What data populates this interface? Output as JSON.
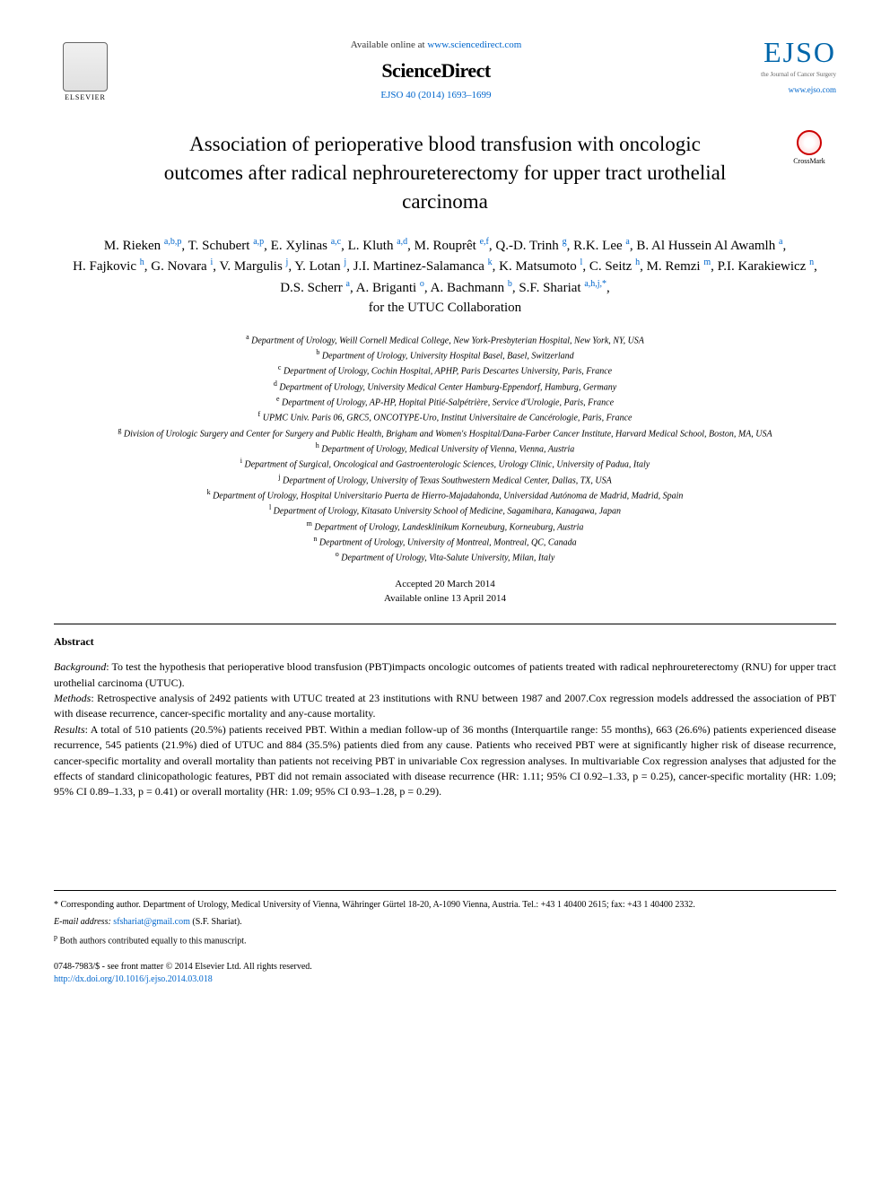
{
  "header": {
    "available_text": "Available online at ",
    "sd_url": "www.sciencedirect.com",
    "sciencedirect": "ScienceDirect",
    "journal_ref": "EJSO 40 (2014) 1693–1699",
    "elsevier_label": "ELSEVIER",
    "ejso_label": "EJSO",
    "ejso_subtitle": "the Journal of Cancer Surgery",
    "ejso_url": "www.ejso.com"
  },
  "crossmark": {
    "label": "CrossMark"
  },
  "title": "Association of perioperative blood transfusion with oncologic outcomes after radical nephroureterectomy for upper tract urothelial carcinoma",
  "authors": [
    {
      "name": "M. Rieken",
      "sup": "a,b,p"
    },
    {
      "name": "T. Schubert",
      "sup": "a,p"
    },
    {
      "name": "E. Xylinas",
      "sup": "a,c"
    },
    {
      "name": "L. Kluth",
      "sup": "a,d"
    },
    {
      "name": "M. Rouprêt",
      "sup": "e,f"
    },
    {
      "name": "Q.-D. Trinh",
      "sup": "g"
    },
    {
      "name": "R.K. Lee",
      "sup": "a"
    },
    {
      "name": "B. Al Hussein Al Awamlh",
      "sup": "a"
    },
    {
      "name": "H. Fajkovic",
      "sup": "h"
    },
    {
      "name": "G. Novara",
      "sup": "i"
    },
    {
      "name": "V. Margulis",
      "sup": "j"
    },
    {
      "name": "Y. Lotan",
      "sup": "j"
    },
    {
      "name": "J.I. Martinez-Salamanca",
      "sup": "k"
    },
    {
      "name": "K. Matsumoto",
      "sup": "l"
    },
    {
      "name": "C. Seitz",
      "sup": "h"
    },
    {
      "name": "M. Remzi",
      "sup": "m"
    },
    {
      "name": "P.I. Karakiewicz",
      "sup": "n"
    },
    {
      "name": "D.S. Scherr",
      "sup": "a"
    },
    {
      "name": "A. Briganti",
      "sup": "o"
    },
    {
      "name": "A. Bachmann",
      "sup": "b"
    },
    {
      "name": "S.F. Shariat",
      "sup": "a,h,j,*"
    }
  ],
  "collaboration": "for the UTUC Collaboration",
  "affiliations": [
    {
      "sup": "a",
      "text": "Department of Urology, Weill Cornell Medical College, New York-Presbyterian Hospital, New York, NY, USA"
    },
    {
      "sup": "b",
      "text": "Department of Urology, University Hospital Basel, Basel, Switzerland"
    },
    {
      "sup": "c",
      "text": "Department of Urology, Cochin Hospital, APHP, Paris Descartes University, Paris, France"
    },
    {
      "sup": "d",
      "text": "Department of Urology, University Medical Center Hamburg-Eppendorf, Hamburg, Germany"
    },
    {
      "sup": "e",
      "text": "Department of Urology, AP-HP, Hopital Pitié-Salpétrière, Service d'Urologie, Paris, France"
    },
    {
      "sup": "f",
      "text": "UPMC Univ. Paris 06, GRC5, ONCOTYPE-Uro, Institut Universitaire de Cancérologie, Paris, France"
    },
    {
      "sup": "g",
      "text": "Division of Urologic Surgery and Center for Surgery and Public Health, Brigham and Women's Hospital/Dana-Farber Cancer Institute, Harvard Medical School, Boston, MA, USA"
    },
    {
      "sup": "h",
      "text": "Department of Urology, Medical University of Vienna, Vienna, Austria"
    },
    {
      "sup": "i",
      "text": "Department of Surgical, Oncological and Gastroenterologic Sciences, Urology Clinic, University of Padua, Italy"
    },
    {
      "sup": "j",
      "text": "Department of Urology, University of Texas Southwestern Medical Center, Dallas, TX, USA"
    },
    {
      "sup": "k",
      "text": "Department of Urology, Hospital Universitario Puerta de Hierro-Majadahonda, Universidad Autónoma de Madrid, Madrid, Spain"
    },
    {
      "sup": "l",
      "text": "Department of Urology, Kitasato University School of Medicine, Sagamihara, Kanagawa, Japan"
    },
    {
      "sup": "m",
      "text": "Department of Urology, Landesklinikum Korneuburg, Korneuburg, Austria"
    },
    {
      "sup": "n",
      "text": "Department of Urology, University of Montreal, Montreal, QC, Canada"
    },
    {
      "sup": "o",
      "text": "Department of Urology, Vita-Salute University, Milan, Italy"
    }
  ],
  "dates": {
    "accepted": "Accepted 20 March 2014",
    "online": "Available online 13 April 2014"
  },
  "abstract": {
    "heading": "Abstract",
    "background_label": "Background",
    "background_text": ": To test the hypothesis that perioperative blood transfusion (PBT)impacts oncologic outcomes of patients treated with radical nephroureterectomy (RNU) for upper tract urothelial carcinoma (UTUC).",
    "methods_label": "Methods",
    "methods_text": ": Retrospective analysis of 2492 patients with UTUC treated at 23 institutions with RNU between 1987 and 2007.Cox regression models addressed the association of PBT with disease recurrence, cancer-specific mortality and any-cause mortality.",
    "results_label": "Results",
    "results_text": ": A total of 510 patients (20.5%) patients received PBT. Within a median follow-up of 36 months (Interquartile range: 55 months), 663 (26.6%) patients experienced disease recurrence, 545 patients (21.9%) died of UTUC and 884 (35.5%) patients died from any cause. Patients who received PBT were at significantly higher risk of disease recurrence, cancer-specific mortality and overall mortality than patients not receiving PBT in univariable Cox regression analyses. In multivariable Cox regression analyses that adjusted for the effects of standard clinicopathologic features, PBT did not remain associated with disease recurrence (HR: 1.11; 95% CI 0.92–1.33, p = 0.25), cancer-specific mortality (HR: 1.09; 95% CI 0.89–1.33, p = 0.41) or overall mortality (HR: 1.09; 95% CI 0.93–1.28, p = 0.29)."
  },
  "footnotes": {
    "corresponding": "* Corresponding author. Department of Urology, Medical University of Vienna, Währinger Gürtel 18-20, A-1090 Vienna, Austria. Tel.: +43 1 40400 2615; fax: +43 1 40400 2332.",
    "email_label": "E-mail address: ",
    "email": "sfshariat@gmail.com",
    "email_suffix": " (S.F. Shariat).",
    "equal_contrib": "p Both authors contributed equally to this manuscript."
  },
  "copyright": {
    "line1": "0748-7983/$ - see front matter © 2014 Elsevier Ltd. All rights reserved.",
    "doi": "http://dx.doi.org/10.1016/j.ejso.2014.03.018"
  }
}
